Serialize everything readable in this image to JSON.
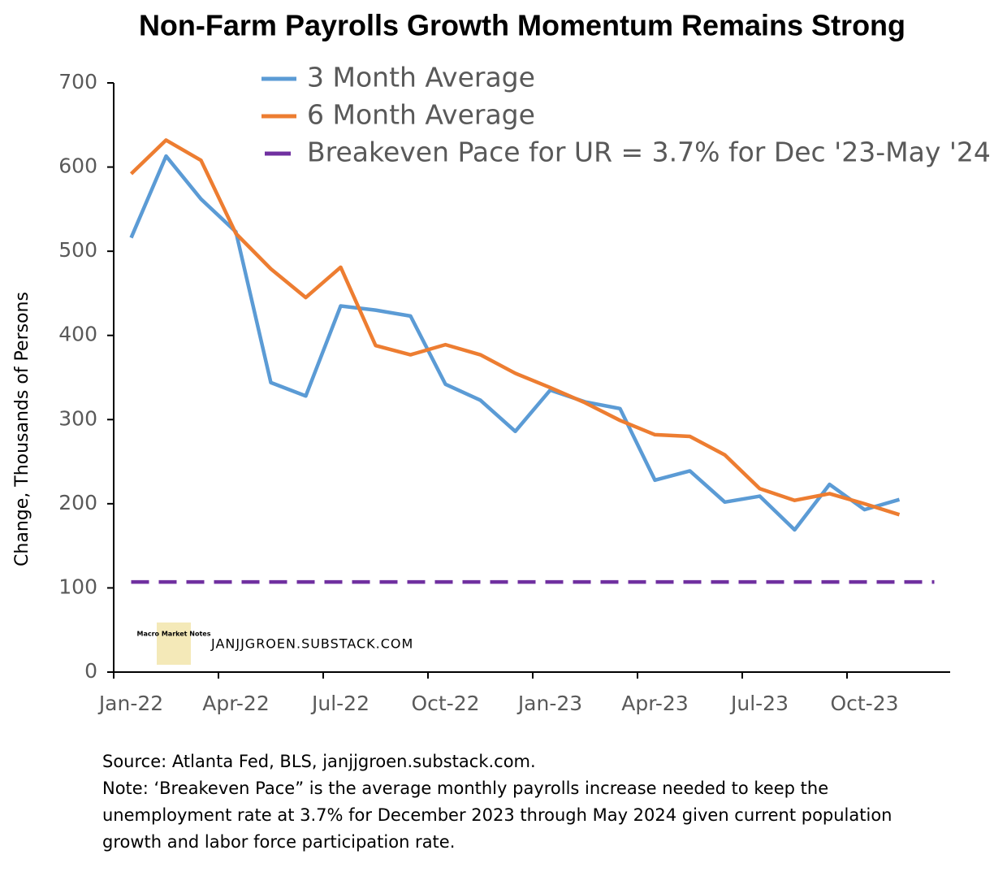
{
  "chart_data": {
    "type": "line",
    "title": "Non-Farm Payrolls Growth Momentum Remains Strong",
    "y_label": "Change, Thousands of Persons",
    "categories": [
      "Jan-22",
      null,
      null,
      "Apr-22",
      null,
      null,
      "Jul-22",
      null,
      null,
      "Oct-22",
      null,
      null,
      "Jan-23",
      null,
      null,
      "Apr-23",
      null,
      null,
      "Jul-23",
      null,
      null,
      "Oct-23",
      null,
      null
    ],
    "series": [
      {
        "name": "3 Month Average",
        "color": "#5b9bd5",
        "dashed": false,
        "values": [
          516,
          613,
          562,
          523,
          344,
          328,
          435,
          430,
          423,
          342,
          323,
          286,
          335,
          321,
          313,
          228,
          239,
          202,
          209,
          169,
          223,
          193,
          205,
          null
        ]
      },
      {
        "name": "6 Month Average",
        "color": "#ed7d31",
        "dashed": false,
        "values": [
          592,
          632,
          608,
          521,
          479,
          445,
          481,
          388,
          377,
          389,
          377,
          355,
          338,
          320,
          299,
          282,
          280,
          258,
          218,
          204,
          212,
          200,
          187,
          null
        ]
      },
      {
        "name": "Breakeven Pace for UR = 3.7% for Dec '23-May '24",
        "color": "#7030a0",
        "dashed": true,
        "values": [
          107,
          107,
          107,
          107,
          107,
          107,
          107,
          107,
          107,
          107,
          107,
          107,
          107,
          107,
          107,
          107,
          107,
          107,
          107,
          107,
          107,
          107,
          107,
          107
        ]
      }
    ],
    "ylim": [
      0,
      700
    ],
    "yticks": [
      0,
      100,
      200,
      300,
      400,
      500,
      600,
      700
    ],
    "grid": false,
    "logo_text": "Macro Market Notes",
    "watermark": "JANJJGROEN.SUBSTACK.COM",
    "notes": [
      "Source: Atlanta Fed, BLS, janjjgroen.substack.com.",
      "Note: ‘Breakeven Pace” is the average monthly payrolls increase needed to keep the",
      "unemployment rate at 3.7% for December 2023 through May 2024 given current population",
      "growth and labor force participation rate."
    ]
  }
}
